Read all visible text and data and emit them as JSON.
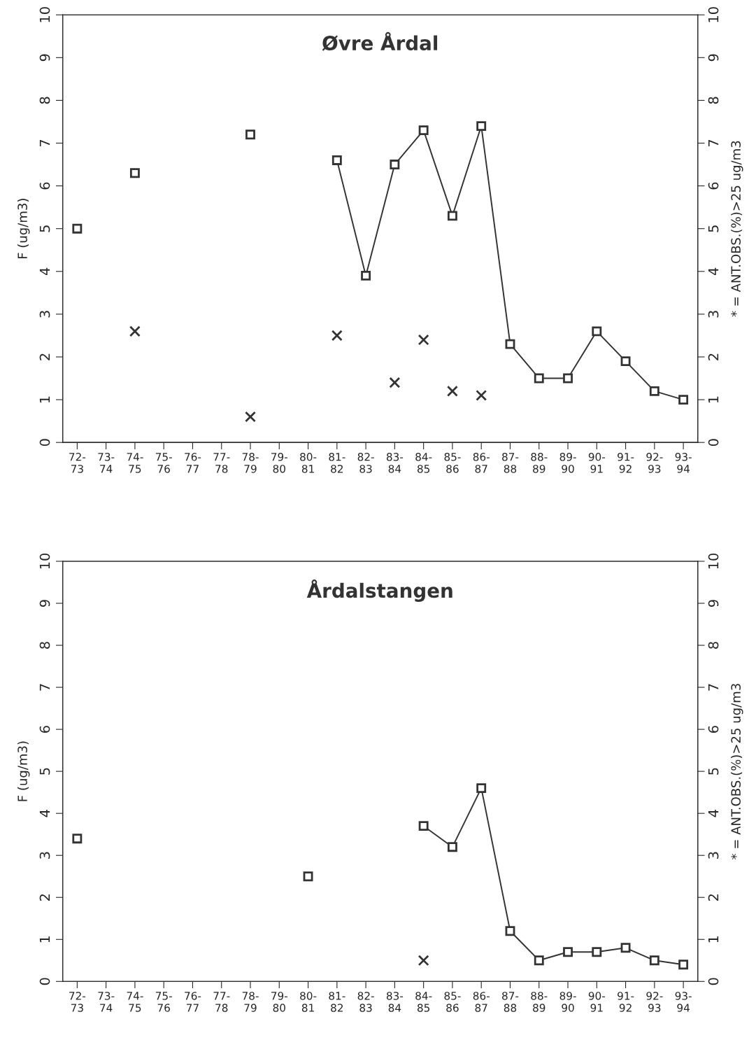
{
  "chart_data": [
    {
      "type": "line",
      "title": "Øvre Årdal",
      "ylabel": "F (ug/m3)",
      "y2label": "* = ANT.OBS.(%)>25 ug/m3",
      "categories": [
        "72-\n73",
        "73-\n74",
        "74-\n75",
        "75-\n76",
        "76-\n77",
        "77-\n78",
        "78-\n79",
        "79-\n80",
        "80-\n81",
        "81-\n82",
        "82-\n83",
        "83-\n84",
        "84-\n85",
        "85-\n86",
        "86-\n87",
        "87-\n88",
        "88-\n89",
        "89-\n90",
        "90-\n91",
        "91-\n92",
        "92-\n93",
        "93-\n94"
      ],
      "ylim": [
        0,
        10
      ],
      "yticks": [
        0,
        1,
        2,
        3,
        4,
        5,
        6,
        7,
        8,
        9,
        10
      ],
      "y2lim": [
        0,
        10
      ],
      "y2ticks": [
        0,
        1,
        2,
        3,
        4,
        5,
        6,
        7,
        8,
        9,
        10
      ],
      "grid": false,
      "series": [
        {
          "marker": "square",
          "color": "#333333",
          "values": [
            5.0,
            null,
            6.3,
            null,
            null,
            null,
            7.2,
            null,
            null,
            6.6,
            3.9,
            6.5,
            7.3,
            5.3,
            7.4,
            2.3,
            1.5,
            1.5,
            2.6,
            1.9,
            1.2,
            1.0
          ]
        },
        {
          "type": "scatter",
          "marker": "cross",
          "color": "#333333",
          "values": [
            null,
            null,
            2.6,
            null,
            null,
            null,
            0.6,
            null,
            null,
            2.5,
            null,
            1.4,
            2.4,
            1.2,
            1.1,
            null,
            null,
            null,
            null,
            null,
            null,
            null
          ]
        }
      ]
    },
    {
      "type": "line",
      "title": "Årdalstangen",
      "ylabel": "F (ug/m3)",
      "y2label": "* = ANT.OBS.(%)>25 ug/m3",
      "categories": [
        "72-\n73",
        "73-\n74",
        "74-\n75",
        "75-\n76",
        "76-\n77",
        "77-\n78",
        "78-\n79",
        "79-\n80",
        "80-\n81",
        "81-\n82",
        "82-\n83",
        "83-\n84",
        "84-\n85",
        "85-\n86",
        "86-\n87",
        "87-\n88",
        "88-\n89",
        "89-\n90",
        "90-\n91",
        "91-\n92",
        "92-\n93",
        "93-\n94"
      ],
      "ylim": [
        0,
        10
      ],
      "yticks": [
        0,
        1,
        2,
        3,
        4,
        5,
        6,
        7,
        8,
        9,
        10
      ],
      "y2lim": [
        0,
        10
      ],
      "y2ticks": [
        0,
        1,
        2,
        3,
        4,
        5,
        6,
        7,
        8,
        9,
        10
      ],
      "grid": false,
      "series": [
        {
          "marker": "square",
          "color": "#333333",
          "values": [
            3.4,
            null,
            null,
            null,
            null,
            null,
            null,
            null,
            2.5,
            null,
            null,
            null,
            3.7,
            3.2,
            4.6,
            1.2,
            0.5,
            0.7,
            0.7,
            0.8,
            0.5,
            0.4
          ]
        },
        {
          "type": "scatter",
          "marker": "cross",
          "color": "#333333",
          "values": [
            null,
            null,
            null,
            null,
            null,
            null,
            null,
            null,
            null,
            null,
            null,
            null,
            0.5,
            null,
            null,
            null,
            null,
            null,
            null,
            null,
            null,
            null
          ]
        }
      ]
    }
  ]
}
